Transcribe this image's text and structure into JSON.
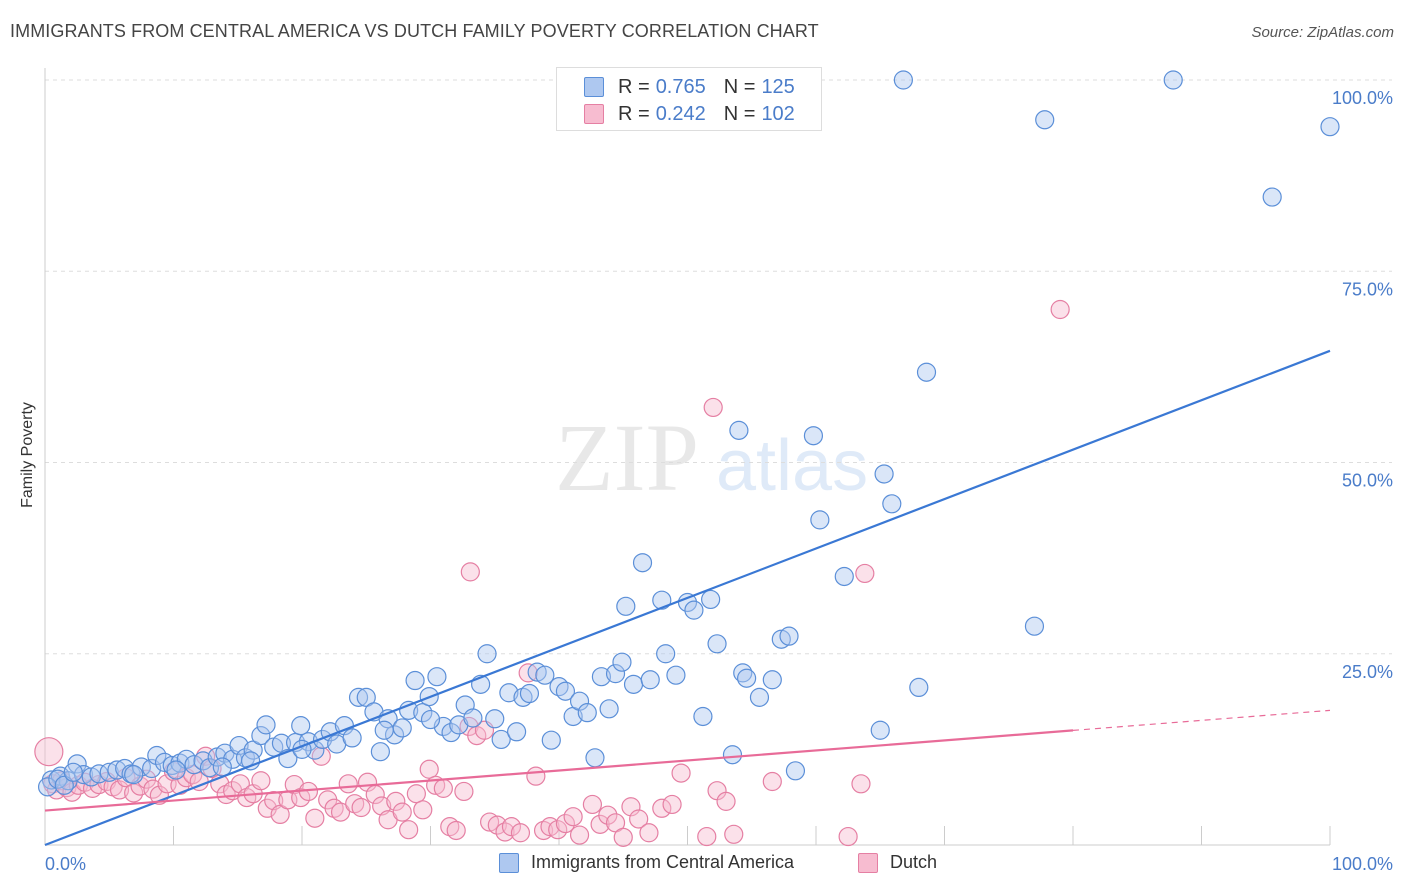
{
  "title": "IMMIGRANTS FROM CENTRAL AMERICA VS DUTCH FAMILY POVERTY CORRELATION CHART",
  "source": "Source: ZipAtlas.com",
  "watermark": {
    "zip": "ZIP",
    "atlas": "atlas"
  },
  "legend_top": {
    "r_label": "R =",
    "n_label": "N =",
    "rows": [
      {
        "r": "0.765",
        "n": "125",
        "fill": "#aec8f0",
        "stroke": "#5b8fd8"
      },
      {
        "r": "0.242",
        "n": "102",
        "fill": "#f7bcd0",
        "stroke": "#e57fa3"
      }
    ]
  },
  "legend_bottom": [
    "Immigrants from Central America",
    "Dutch"
  ],
  "colors": {
    "blue_fill": "#aec8f0",
    "blue_stroke": "#5b8fd8",
    "blue_line": "#3a78d4",
    "pink_fill": "#f7bcd0",
    "pink_stroke": "#e57fa3",
    "pink_line": "#e86b98",
    "axis_label": "#4a7cc9",
    "grid": "#dddddd"
  },
  "chart_data": {
    "type": "scatter",
    "title": "IMMIGRANTS FROM CENTRAL AMERICA VS DUTCH FAMILY POVERTY CORRELATION CHART",
    "xlabel": "",
    "ylabel": "Family Poverty",
    "x_tick_labels": [
      "0.0%",
      "100.0%"
    ],
    "y_tick_labels": [
      "25.0%",
      "50.0%",
      "75.0%",
      "100.0%"
    ],
    "y_ticks": [
      25,
      50,
      75,
      100
    ],
    "xlim": [
      0,
      100
    ],
    "ylim": [
      0,
      100
    ],
    "grid": true,
    "legend_placement": "top-center",
    "series": [
      {
        "name": "Immigrants from Central America",
        "r": 0.765,
        "n": 125,
        "trend": {
          "x": [
            0,
            100
          ],
          "y": [
            0.0,
            64.6
          ],
          "dashed_from": null
        },
        "points": [
          [
            0.5,
            8.5
          ],
          [
            1.2,
            9.0
          ],
          [
            1.8,
            8.4
          ],
          [
            2.5,
            10.6
          ],
          [
            3.0,
            9.2
          ],
          [
            3.6,
            8.9
          ],
          [
            4.2,
            9.3
          ],
          [
            5.0,
            9.5
          ],
          [
            5.6,
            9.8
          ],
          [
            6.2,
            10.0
          ],
          [
            6.7,
            9.3
          ],
          [
            7.5,
            10.2
          ],
          [
            8.3,
            10.0
          ],
          [
            8.7,
            11.7
          ],
          [
            9.3,
            10.8
          ],
          [
            9.9,
            10.4
          ],
          [
            10.5,
            10.7
          ],
          [
            11.0,
            11.2
          ],
          [
            11.6,
            10.5
          ],
          [
            12.3,
            11.0
          ],
          [
            12.8,
            10.1
          ],
          [
            13.4,
            11.5
          ],
          [
            14.0,
            12.0
          ],
          [
            14.6,
            11.2
          ],
          [
            15.1,
            13.0
          ],
          [
            15.6,
            11.4
          ],
          [
            16.2,
            12.4
          ],
          [
            16.8,
            14.3
          ],
          [
            17.2,
            15.7
          ],
          [
            17.8,
            12.8
          ],
          [
            18.4,
            13.3
          ],
          [
            18.9,
            11.3
          ],
          [
            19.5,
            13.4
          ],
          [
            19.9,
            15.6
          ],
          [
            20.5,
            13.5
          ],
          [
            21.0,
            12.4
          ],
          [
            21.6,
            13.8
          ],
          [
            22.2,
            14.8
          ],
          [
            22.7,
            13.2
          ],
          [
            23.3,
            15.6
          ],
          [
            23.9,
            14.0
          ],
          [
            24.4,
            19.3
          ],
          [
            25.0,
            19.3
          ],
          [
            25.6,
            17.4
          ],
          [
            26.1,
            12.2
          ],
          [
            26.7,
            16.5
          ],
          [
            27.2,
            14.4
          ],
          [
            27.8,
            15.3
          ],
          [
            28.3,
            17.6
          ],
          [
            28.8,
            21.5
          ],
          [
            29.4,
            17.3
          ],
          [
            29.9,
            19.4
          ],
          [
            30.5,
            22.0
          ],
          [
            31.0,
            15.5
          ],
          [
            31.6,
            14.7
          ],
          [
            32.2,
            15.7
          ],
          [
            32.7,
            18.3
          ],
          [
            33.3,
            16.6
          ],
          [
            33.9,
            21.0
          ],
          [
            34.4,
            25.0
          ],
          [
            35.0,
            16.5
          ],
          [
            35.5,
            13.8
          ],
          [
            36.1,
            19.9
          ],
          [
            36.7,
            14.8
          ],
          [
            37.2,
            19.3
          ],
          [
            37.7,
            19.8
          ],
          [
            38.3,
            22.6
          ],
          [
            38.9,
            22.2
          ],
          [
            39.4,
            13.7
          ],
          [
            40.0,
            20.7
          ],
          [
            40.5,
            20.1
          ],
          [
            41.1,
            16.8
          ],
          [
            41.6,
            18.8
          ],
          [
            42.2,
            17.3
          ],
          [
            42.8,
            11.4
          ],
          [
            43.3,
            22.0
          ],
          [
            43.9,
            17.8
          ],
          [
            44.4,
            22.4
          ],
          [
            44.9,
            23.9
          ],
          [
            45.2,
            31.2
          ],
          [
            45.8,
            21.0
          ],
          [
            46.5,
            36.9
          ],
          [
            47.1,
            21.6
          ],
          [
            48.0,
            32.0
          ],
          [
            48.3,
            25.0
          ],
          [
            49.1,
            22.2
          ],
          [
            50.0,
            31.7
          ],
          [
            50.5,
            30.7
          ],
          [
            51.2,
            16.8
          ],
          [
            51.8,
            32.1
          ],
          [
            52.3,
            26.3
          ],
          [
            53.5,
            11.8
          ],
          [
            54.0,
            54.2
          ],
          [
            54.3,
            22.5
          ],
          [
            54.6,
            21.8
          ],
          [
            55.6,
            19.3
          ],
          [
            56.6,
            21.6
          ],
          [
            57.3,
            26.9
          ],
          [
            57.9,
            27.3
          ],
          [
            58.4,
            9.7
          ],
          [
            59.8,
            53.5
          ],
          [
            60.3,
            42.5
          ],
          [
            62.2,
            35.1
          ],
          [
            65.0,
            15.0
          ],
          [
            65.3,
            48.5
          ],
          [
            65.9,
            44.6
          ],
          [
            68.0,
            20.6
          ],
          [
            68.6,
            61.8
          ],
          [
            77.0,
            28.6
          ],
          [
            66.8,
            100.0
          ],
          [
            77.8,
            94.8
          ],
          [
            87.8,
            100.0
          ],
          [
            95.5,
            84.7
          ],
          [
            100.0,
            93.9
          ],
          [
            0.2,
            7.6
          ],
          [
            1.0,
            8.6
          ],
          [
            1.5,
            7.8
          ],
          [
            2.2,
            9.5
          ],
          [
            6.9,
            9.2
          ],
          [
            10.2,
            9.8
          ],
          [
            13.8,
            10.2
          ],
          [
            16.0,
            11.0
          ],
          [
            20.0,
            12.5
          ],
          [
            26.4,
            15.0
          ],
          [
            30.0,
            16.4
          ]
        ]
      },
      {
        "name": "Dutch",
        "r": 0.242,
        "n": 102,
        "trend": {
          "x": [
            0,
            100
          ],
          "y": [
            4.5,
            17.6
          ],
          "dashed_from": 80
        },
        "points": [
          [
            0.3,
            12.2
          ],
          [
            0.6,
            8.0
          ],
          [
            0.9,
            7.2
          ],
          [
            1.3,
            8.4
          ],
          [
            1.7,
            7.5
          ],
          [
            2.1,
            6.9
          ],
          [
            2.6,
            7.8
          ],
          [
            3.1,
            8.2
          ],
          [
            3.7,
            7.4
          ],
          [
            4.2,
            7.9
          ],
          [
            4.8,
            8.3
          ],
          [
            5.3,
            7.6
          ],
          [
            5.8,
            7.2
          ],
          [
            6.3,
            8.8
          ],
          [
            6.9,
            6.8
          ],
          [
            7.4,
            7.7
          ],
          [
            7.9,
            8.6
          ],
          [
            8.4,
            7.3
          ],
          [
            8.9,
            6.5
          ],
          [
            9.5,
            8.0
          ],
          [
            10.0,
            9.6
          ],
          [
            10.5,
            7.8
          ],
          [
            11.0,
            8.8
          ],
          [
            11.5,
            9.2
          ],
          [
            12.0,
            8.3
          ],
          [
            12.5,
            11.6
          ],
          [
            13.0,
            10.0
          ],
          [
            13.6,
            8.0
          ],
          [
            14.1,
            6.6
          ],
          [
            14.6,
            7.1
          ],
          [
            15.2,
            8.0
          ],
          [
            15.7,
            6.2
          ],
          [
            16.2,
            6.7
          ],
          [
            16.8,
            8.4
          ],
          [
            17.3,
            4.8
          ],
          [
            17.8,
            5.8
          ],
          [
            18.3,
            4.0
          ],
          [
            18.9,
            5.9
          ],
          [
            19.4,
            7.9
          ],
          [
            19.9,
            6.2
          ],
          [
            20.5,
            7.0
          ],
          [
            21.0,
            3.5
          ],
          [
            21.5,
            11.6
          ],
          [
            22.0,
            5.9
          ],
          [
            22.5,
            4.8
          ],
          [
            23.0,
            4.3
          ],
          [
            23.6,
            8.0
          ],
          [
            24.1,
            5.4
          ],
          [
            24.6,
            4.9
          ],
          [
            25.1,
            8.2
          ],
          [
            25.7,
            6.6
          ],
          [
            26.2,
            5.1
          ],
          [
            26.7,
            3.3
          ],
          [
            27.3,
            5.7
          ],
          [
            27.8,
            4.3
          ],
          [
            28.3,
            2.0
          ],
          [
            28.9,
            6.7
          ],
          [
            29.4,
            4.6
          ],
          [
            29.9,
            9.9
          ],
          [
            30.4,
            7.8
          ],
          [
            31.0,
            7.4
          ],
          [
            31.5,
            2.4
          ],
          [
            32.0,
            1.9
          ],
          [
            32.6,
            7.0
          ],
          [
            33.0,
            15.5
          ],
          [
            33.6,
            14.3
          ],
          [
            34.2,
            15.0
          ],
          [
            34.6,
            3.0
          ],
          [
            35.2,
            2.6
          ],
          [
            35.8,
            1.7
          ],
          [
            36.3,
            2.4
          ],
          [
            37.0,
            1.6
          ],
          [
            37.6,
            22.5
          ],
          [
            38.2,
            9.0
          ],
          [
            38.8,
            1.9
          ],
          [
            39.3,
            2.4
          ],
          [
            39.9,
            2.0
          ],
          [
            40.5,
            2.8
          ],
          [
            41.1,
            3.7
          ],
          [
            41.6,
            1.3
          ],
          [
            42.6,
            5.3
          ],
          [
            43.2,
            2.7
          ],
          [
            43.8,
            3.9
          ],
          [
            44.4,
            2.9
          ],
          [
            45.0,
            1.0
          ],
          [
            45.6,
            5.0
          ],
          [
            46.2,
            3.4
          ],
          [
            47.0,
            1.6
          ],
          [
            48.0,
            4.8
          ],
          [
            48.8,
            5.3
          ],
          [
            49.5,
            9.4
          ],
          [
            51.5,
            1.1
          ],
          [
            52.3,
            7.1
          ],
          [
            53.0,
            5.7
          ],
          [
            53.6,
            1.4
          ],
          [
            56.6,
            8.3
          ],
          [
            62.5,
            1.1
          ],
          [
            63.5,
            8.0
          ],
          [
            63.8,
            35.5
          ],
          [
            79.0,
            70.0
          ],
          [
            52.0,
            57.2
          ],
          [
            33.1,
            35.7
          ]
        ]
      }
    ]
  }
}
